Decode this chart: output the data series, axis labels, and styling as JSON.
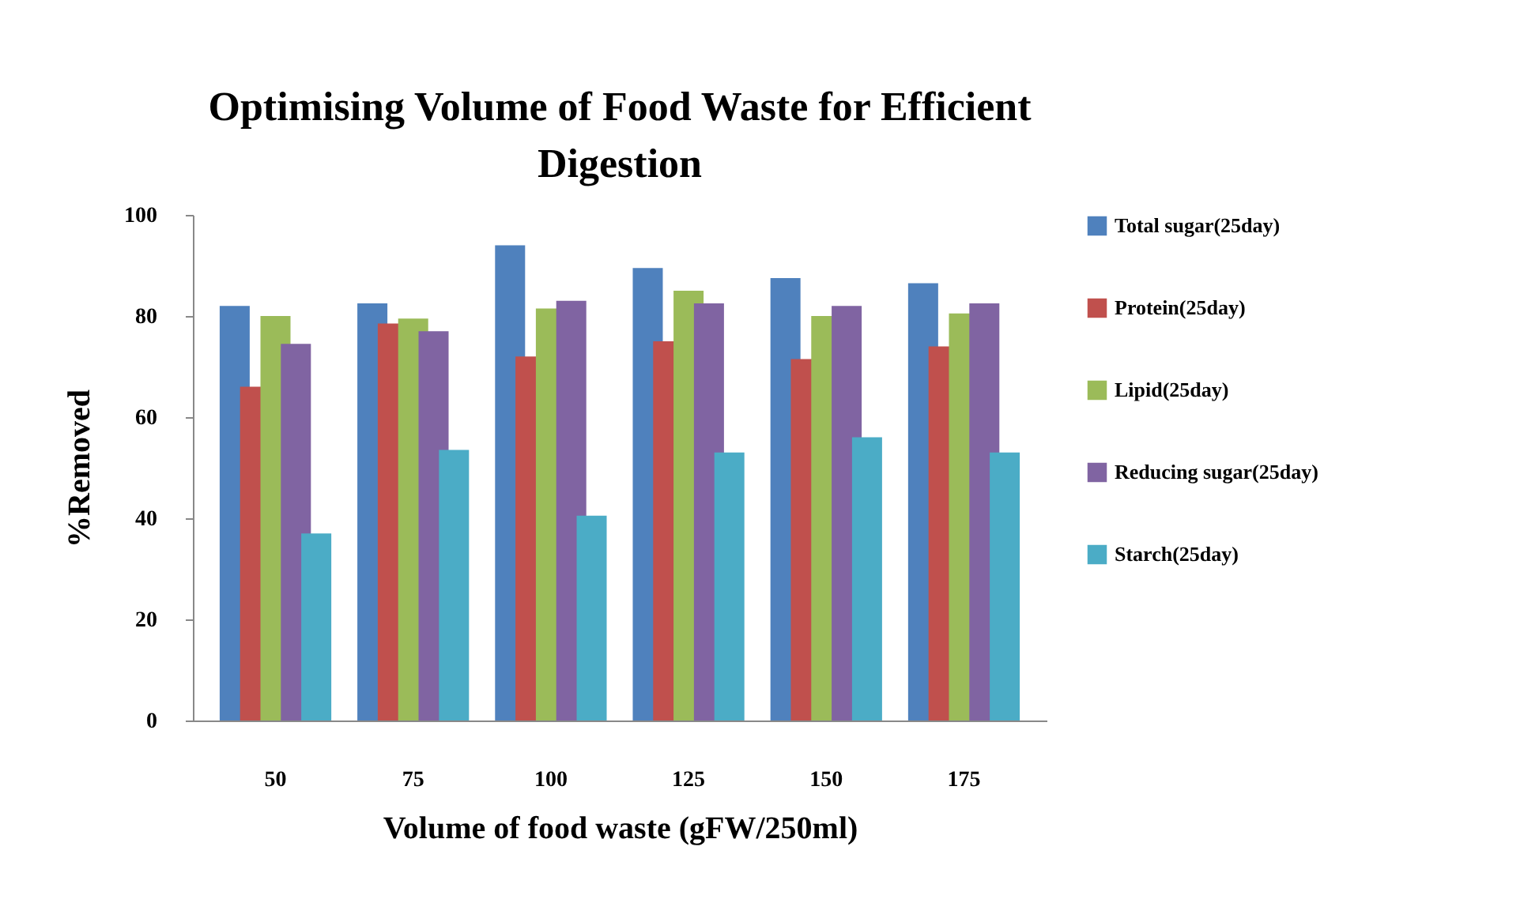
{
  "chart_data": {
    "type": "bar",
    "title": "Optimising Volume of Food Waste for Efficient Digestion",
    "xlabel": "Volume of food waste (gFW/250ml)",
    "ylabel": "%Removed",
    "categories": [
      "50",
      "75",
      "100",
      "125",
      "150",
      "175"
    ],
    "series": [
      {
        "name": "Total sugar(25day)",
        "color": "#4f81bd",
        "values": [
          82,
          82.5,
          94,
          89.5,
          87.5,
          86.5
        ]
      },
      {
        "name": "Protein(25day)",
        "color": "#c0504d",
        "values": [
          66,
          78.5,
          72,
          75,
          71.5,
          74
        ]
      },
      {
        "name": "Lipid(25day)",
        "color": "#9bbb59",
        "values": [
          80,
          79.5,
          81.5,
          85,
          80,
          80.5
        ]
      },
      {
        "name": "Reducing sugar(25day)",
        "color": "#8064a2",
        "values": [
          74.5,
          77,
          83,
          82.5,
          82,
          82.5
        ]
      },
      {
        "name": "Starch(25day)",
        "color": "#4bacc6",
        "values": [
          37,
          53.5,
          40.5,
          53,
          56,
          53
        ]
      }
    ],
    "ylim": [
      0,
      100
    ],
    "yticks": [
      0,
      20,
      40,
      60,
      80,
      100
    ],
    "grid": false,
    "legend": "right"
  }
}
